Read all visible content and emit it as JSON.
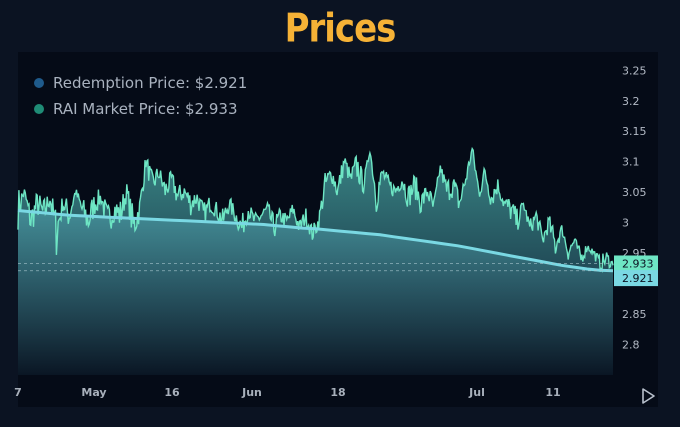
{
  "title": "Prices",
  "legend": {
    "redemption": "Redemption Price: $2.921",
    "market": "RAI Market Price: $2.933"
  },
  "colors": {
    "title": "#f6b236",
    "market_line": "#6ee6c4",
    "redemption_line": "#7ad8e3",
    "redemption_dot": "#1f5b8c",
    "market_dot": "#1f8c76",
    "market_label_bg": "#6ee6c4",
    "redemption_label_bg": "#7ad8e3"
  },
  "icons": {
    "play": "play-triangle-icon"
  },
  "chart_data": {
    "type": "area",
    "ylim": [
      2.75,
      3.28
    ],
    "y_ticks": [
      "3.25",
      "3.2",
      "3.15",
      "3.1",
      "3.05",
      "3",
      "2.95",
      "2.85",
      "2.8"
    ],
    "x_ticks": [
      "7",
      "May",
      "16",
      "Jun",
      "18",
      "Jul",
      "11"
    ],
    "last_labels": {
      "market": "2.933",
      "redemption": "2.921"
    },
    "series": [
      {
        "key": "market",
        "values": [
          3.02,
          3.05,
          3.0,
          3.03,
          3.01,
          3.04,
          2.98,
          3.03,
          3.01,
          3.05,
          3.02,
          3.0,
          3.03,
          3.04,
          3.0,
          3.02,
          3.01,
          3.05,
          2.99,
          3.02,
          3.1,
          3.06,
          3.08,
          3.05,
          3.07,
          3.04,
          3.05,
          3.03,
          3.04,
          3.01,
          3.03,
          3.02,
          3.0,
          3.03,
          3.01,
          2.99,
          3.02,
          3.0,
          3.01,
          3.02,
          2.99,
          3.01,
          3.0,
          3.02,
          2.99,
          3.01,
          2.98,
          3.0,
          3.06,
          3.08,
          3.05,
          3.1,
          3.07,
          3.09,
          3.06,
          3.12,
          3.04,
          3.08,
          3.06,
          3.05,
          3.07,
          3.04,
          3.06,
          3.03,
          3.05,
          3.02,
          3.09,
          3.05,
          3.06,
          3.03,
          3.07,
          3.12,
          3.05,
          3.08,
          3.04,
          3.06,
          3.03,
          3.02,
          3.0,
          3.03,
          2.99,
          3.01,
          2.97,
          3.0,
          2.96,
          2.99,
          2.95,
          2.97,
          2.94,
          2.96,
          2.95,
          2.93,
          2.94,
          2.93
        ],
        "highs": [
          3.07,
          3.06,
          3.04,
          3.06,
          3.05,
          3.06,
          3.04,
          3.05,
          3.05,
          3.06,
          3.05,
          3.04,
          3.06,
          3.06,
          3.04,
          3.05,
          3.05,
          3.07,
          3.04,
          3.05,
          3.12,
          3.09,
          3.1,
          3.08,
          3.09,
          3.07,
          3.07,
          3.06,
          3.06,
          3.04,
          3.05,
          3.04,
          3.03,
          3.05,
          3.03,
          3.02,
          3.04,
          3.02,
          3.03,
          3.04,
          3.02,
          3.03,
          3.02,
          3.04,
          3.01,
          3.03,
          3.0,
          3.02,
          3.09,
          3.1,
          3.08,
          3.12,
          3.09,
          3.13,
          3.08,
          3.12,
          3.08,
          3.1,
          3.08,
          3.07,
          3.09,
          3.07,
          3.09,
          3.06,
          3.07,
          3.05,
          3.1,
          3.08,
          3.09,
          3.06,
          3.09,
          3.13,
          3.08,
          3.1,
          3.07,
          3.08,
          3.05,
          3.05,
          3.03,
          3.04,
          3.01,
          3.03,
          2.99,
          3.02,
          2.99,
          3.0,
          2.97,
          2.98,
          2.96,
          2.97,
          2.96,
          2.95,
          2.96,
          2.94
        ]
      },
      {
        "key": "redemption",
        "values": [
          3.02,
          3.018,
          3.016,
          3.014,
          3.012,
          3.011,
          3.01,
          3.009,
          3.008,
          3.007,
          3.006,
          3.005,
          3.004,
          3.003,
          3.002,
          3.001,
          3.0,
          2.999,
          2.998,
          2.997,
          2.995,
          2.993,
          2.991,
          2.99,
          2.988,
          2.986,
          2.984,
          2.982,
          2.98,
          2.977,
          2.974,
          2.971,
          2.968,
          2.965,
          2.962,
          2.958,
          2.954,
          2.95,
          2.946,
          2.942,
          2.938,
          2.934,
          2.93,
          2.927,
          2.924,
          2.922,
          2.921
        ]
      }
    ]
  }
}
